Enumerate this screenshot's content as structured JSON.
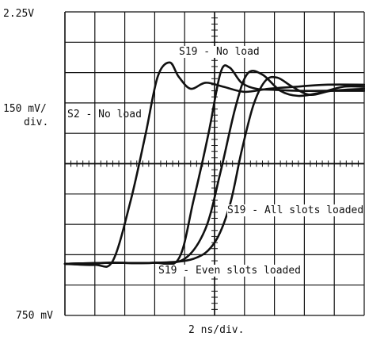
{
  "chart_data": {
    "type": "line",
    "title": "",
    "y_top_label": "2.25V",
    "y_bottom_label": "750 mV",
    "y_scale_label_line1": "150 mV/",
    "y_scale_label_line2": "div.",
    "x_scale_label": "2 ns/div.",
    "ylim": [
      0.75,
      2.25
    ],
    "xlim": [
      0,
      20
    ],
    "x_unit": "ns",
    "grid": true,
    "divisions": {
      "x": 10,
      "y": 10
    },
    "series": [
      {
        "name": "S2 - No load",
        "x": [
          0,
          2,
          3.2,
          4.4,
          5.4,
          6.2,
          7.0,
          7.6,
          8.4,
          9.4,
          10.6,
          12.0,
          13.6,
          15.4,
          17.4,
          20.0
        ],
        "y": [
          1.005,
          1.0,
          1.02,
          1.32,
          1.65,
          1.93,
          2.0,
          1.93,
          1.87,
          1.9,
          1.88,
          1.855,
          1.87,
          1.88,
          1.89,
          1.89
        ]
      },
      {
        "name": "S19 - No load",
        "x": [
          0,
          3.0,
          6.0,
          7.6,
          8.6,
          9.6,
          10.4,
          11.0,
          11.8,
          12.8,
          14.0,
          15.6,
          17.4,
          20.0
        ],
        "y": [
          1.005,
          1.01,
          1.01,
          1.03,
          1.32,
          1.65,
          1.95,
          1.975,
          1.9,
          1.87,
          1.865,
          1.86,
          1.86,
          1.86
        ]
      },
      {
        "name": "S19 - All slots loaded",
        "x": [
          0,
          3.0,
          6.0,
          8.0,
          9.4,
          10.4,
          11.4,
          12.2,
          13.2,
          14.4,
          15.6,
          17.0,
          18.6,
          20.0
        ],
        "y": [
          1.005,
          1.01,
          1.01,
          1.03,
          1.18,
          1.46,
          1.78,
          1.945,
          1.94,
          1.86,
          1.835,
          1.85,
          1.88,
          1.88
        ]
      },
      {
        "name": "S19 - Even slots loaded",
        "x": [
          0,
          3.0,
          6.0,
          8.6,
          10.0,
          11.0,
          11.8,
          12.6,
          13.4,
          14.2,
          15.2,
          16.4,
          17.8,
          20.0
        ],
        "y": [
          1.005,
          1.01,
          1.01,
          1.03,
          1.11,
          1.29,
          1.56,
          1.79,
          1.91,
          1.925,
          1.88,
          1.84,
          1.86,
          1.87
        ]
      }
    ]
  }
}
